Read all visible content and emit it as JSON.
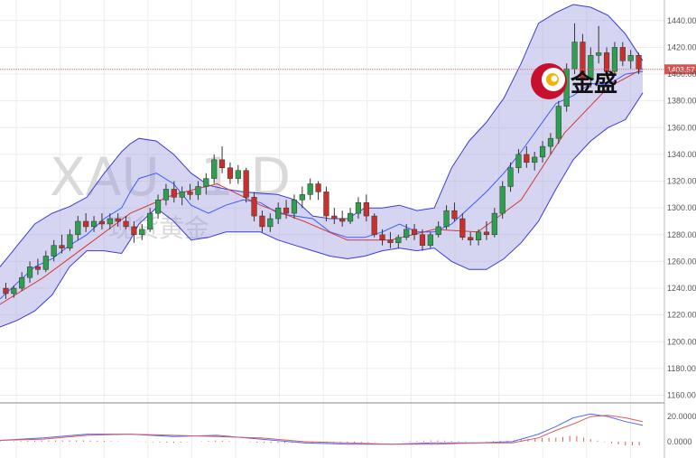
{
  "chart_data": {
    "type": "candlestick",
    "watermark": {
      "symbol": "XAU",
      "timeframe": "1 D",
      "subtitle": "现货黄金"
    },
    "brand": {
      "name": "金盛"
    },
    "price_axis": {
      "ticks": [
        "1160.00",
        "1180.00",
        "1200.00",
        "1220.00",
        "1240.00",
        "1260.00",
        "1280.00",
        "1300.00",
        "1320.00",
        "1340.00",
        "1360.00",
        "1380.00",
        "1400.00",
        "1420.00",
        "1440.00"
      ],
      "tick_values": [
        1160,
        1180,
        1200,
        1220,
        1240,
        1260,
        1280,
        1300,
        1320,
        1340,
        1360,
        1380,
        1400,
        1420,
        1440
      ],
      "ylim": [
        1157,
        1450
      ]
    },
    "current_price": {
      "label": "1403.57",
      "value": 1403.57
    },
    "indicator_axis": {
      "ticks": [
        "20.0000",
        "0.0000"
      ],
      "tick_values": [
        20,
        0
      ],
      "ylim": [
        -8,
        28
      ]
    },
    "bollinger": {
      "x": [
        0,
        4,
        8,
        12,
        16,
        20,
        24,
        28,
        30,
        32,
        36,
        40,
        44,
        48,
        52,
        56,
        60,
        64,
        68,
        72,
        76,
        80,
        84,
        88,
        92,
        96,
        100,
        104,
        108,
        112,
        116,
        120,
        124,
        128,
        132,
        136,
        140,
        144,
        148
      ],
      "upper": [
        1256,
        1272,
        1288,
        1296,
        1301,
        1308,
        1326,
        1342,
        1348,
        1352,
        1350,
        1340,
        1326,
        1317,
        1314,
        1312,
        1311,
        1310,
        1306,
        1294,
        1292,
        1292,
        1300,
        1300,
        1302,
        1298,
        1300,
        1330,
        1350,
        1364,
        1382,
        1408,
        1438,
        1446,
        1452,
        1450,
        1444,
        1430,
        1410
      ],
      "middle": [
        1232,
        1244,
        1256,
        1262,
        1272,
        1280,
        1292,
        1300,
        1312,
        1322,
        1326,
        1318,
        1302,
        1296,
        1302,
        1306,
        1304,
        1296,
        1294,
        1292,
        1282,
        1278,
        1278,
        1282,
        1288,
        1282,
        1282,
        1288,
        1300,
        1312,
        1326,
        1342,
        1360,
        1378,
        1384,
        1393,
        1392,
        1400,
        1402
      ],
      "lower": [
        1211,
        1216,
        1223,
        1235,
        1256,
        1268,
        1268,
        1266,
        1276,
        1288,
        1300,
        1290,
        1276,
        1278,
        1282,
        1282,
        1282,
        1276,
        1272,
        1268,
        1264,
        1262,
        1264,
        1268,
        1270,
        1268,
        1270,
        1260,
        1254,
        1254,
        1262,
        1274,
        1290,
        1314,
        1336,
        1350,
        1360,
        1366,
        1386
      ]
    },
    "moving_average": {
      "name": "",
      "x": [
        0,
        10,
        20,
        30,
        40,
        50,
        60,
        70,
        80,
        90,
        100,
        110,
        120,
        130,
        140,
        148
      ],
      "values": [
        1228,
        1248,
        1272,
        1296,
        1310,
        1318,
        1302,
        1290,
        1276,
        1276,
        1284,
        1282,
        1306,
        1356,
        1390,
        1404
      ]
    },
    "candles": [
      {
        "o": 1240,
        "h": 1244,
        "l": 1232,
        "c": 1236
      },
      {
        "o": 1236,
        "h": 1242,
        "l": 1233,
        "c": 1240
      },
      {
        "o": 1240,
        "h": 1252,
        "l": 1238,
        "c": 1248
      },
      {
        "o": 1248,
        "h": 1260,
        "l": 1244,
        "c": 1256
      },
      {
        "o": 1256,
        "h": 1262,
        "l": 1250,
        "c": 1254
      },
      {
        "o": 1254,
        "h": 1268,
        "l": 1252,
        "c": 1264
      },
      {
        "o": 1264,
        "h": 1276,
        "l": 1260,
        "c": 1272
      },
      {
        "o": 1272,
        "h": 1280,
        "l": 1266,
        "c": 1270
      },
      {
        "o": 1270,
        "h": 1284,
        "l": 1268,
        "c": 1280
      },
      {
        "o": 1280,
        "h": 1294,
        "l": 1276,
        "c": 1290
      },
      {
        "o": 1290,
        "h": 1296,
        "l": 1282,
        "c": 1286
      },
      {
        "o": 1286,
        "h": 1294,
        "l": 1282,
        "c": 1290
      },
      {
        "o": 1290,
        "h": 1296,
        "l": 1284,
        "c": 1288
      },
      {
        "o": 1288,
        "h": 1296,
        "l": 1284,
        "c": 1292
      },
      {
        "o": 1292,
        "h": 1296,
        "l": 1286,
        "c": 1290
      },
      {
        "o": 1290,
        "h": 1294,
        "l": 1284,
        "c": 1286
      },
      {
        "o": 1286,
        "h": 1290,
        "l": 1274,
        "c": 1280
      },
      {
        "o": 1280,
        "h": 1288,
        "l": 1276,
        "c": 1284
      },
      {
        "o": 1284,
        "h": 1300,
        "l": 1282,
        "c": 1296
      },
      {
        "o": 1296,
        "h": 1310,
        "l": 1292,
        "c": 1306
      },
      {
        "o": 1306,
        "h": 1318,
        "l": 1302,
        "c": 1314
      },
      {
        "o": 1314,
        "h": 1320,
        "l": 1304,
        "c": 1308
      },
      {
        "o": 1308,
        "h": 1316,
        "l": 1302,
        "c": 1312
      },
      {
        "o": 1312,
        "h": 1318,
        "l": 1306,
        "c": 1310
      },
      {
        "o": 1310,
        "h": 1320,
        "l": 1306,
        "c": 1316
      },
      {
        "o": 1316,
        "h": 1326,
        "l": 1310,
        "c": 1322
      },
      {
        "o": 1322,
        "h": 1340,
        "l": 1318,
        "c": 1336
      },
      {
        "o": 1336,
        "h": 1346,
        "l": 1326,
        "c": 1330
      },
      {
        "o": 1330,
        "h": 1334,
        "l": 1318,
        "c": 1322
      },
      {
        "o": 1322,
        "h": 1332,
        "l": 1318,
        "c": 1328
      },
      {
        "o": 1328,
        "h": 1330,
        "l": 1304,
        "c": 1308
      },
      {
        "o": 1308,
        "h": 1312,
        "l": 1290,
        "c": 1294
      },
      {
        "o": 1294,
        "h": 1298,
        "l": 1282,
        "c": 1286
      },
      {
        "o": 1286,
        "h": 1296,
        "l": 1282,
        "c": 1292
      },
      {
        "o": 1292,
        "h": 1304,
        "l": 1288,
        "c": 1300
      },
      {
        "o": 1300,
        "h": 1306,
        "l": 1292,
        "c": 1296
      },
      {
        "o": 1296,
        "h": 1310,
        "l": 1292,
        "c": 1306
      },
      {
        "o": 1306,
        "h": 1316,
        "l": 1300,
        "c": 1310
      },
      {
        "o": 1310,
        "h": 1322,
        "l": 1306,
        "c": 1318
      },
      {
        "o": 1318,
        "h": 1320,
        "l": 1306,
        "c": 1312
      },
      {
        "o": 1312,
        "h": 1316,
        "l": 1290,
        "c": 1294
      },
      {
        "o": 1294,
        "h": 1300,
        "l": 1288,
        "c": 1292
      },
      {
        "o": 1292,
        "h": 1298,
        "l": 1286,
        "c": 1290
      },
      {
        "o": 1290,
        "h": 1300,
        "l": 1288,
        "c": 1296
      },
      {
        "o": 1296,
        "h": 1308,
        "l": 1292,
        "c": 1304
      },
      {
        "o": 1304,
        "h": 1310,
        "l": 1290,
        "c": 1294
      },
      {
        "o": 1294,
        "h": 1296,
        "l": 1278,
        "c": 1280
      },
      {
        "o": 1280,
        "h": 1284,
        "l": 1272,
        "c": 1276
      },
      {
        "o": 1276,
        "h": 1282,
        "l": 1270,
        "c": 1274
      },
      {
        "o": 1274,
        "h": 1280,
        "l": 1270,
        "c": 1278
      },
      {
        "o": 1278,
        "h": 1288,
        "l": 1276,
        "c": 1284
      },
      {
        "o": 1284,
        "h": 1288,
        "l": 1276,
        "c": 1280
      },
      {
        "o": 1280,
        "h": 1284,
        "l": 1268,
        "c": 1272
      },
      {
        "o": 1272,
        "h": 1282,
        "l": 1270,
        "c": 1280
      },
      {
        "o": 1280,
        "h": 1290,
        "l": 1278,
        "c": 1286
      },
      {
        "o": 1286,
        "h": 1302,
        "l": 1284,
        "c": 1298
      },
      {
        "o": 1298,
        "h": 1304,
        "l": 1290,
        "c": 1292
      },
      {
        "o": 1292,
        "h": 1296,
        "l": 1276,
        "c": 1278
      },
      {
        "o": 1278,
        "h": 1282,
        "l": 1272,
        "c": 1276
      },
      {
        "o": 1276,
        "h": 1284,
        "l": 1272,
        "c": 1282
      },
      {
        "o": 1282,
        "h": 1290,
        "l": 1276,
        "c": 1280
      },
      {
        "o": 1280,
        "h": 1300,
        "l": 1278,
        "c": 1296
      },
      {
        "o": 1296,
        "h": 1320,
        "l": 1292,
        "c": 1316
      },
      {
        "o": 1316,
        "h": 1334,
        "l": 1312,
        "c": 1330
      },
      {
        "o": 1330,
        "h": 1344,
        "l": 1326,
        "c": 1340
      },
      {
        "o": 1340,
        "h": 1346,
        "l": 1330,
        "c": 1334
      },
      {
        "o": 1334,
        "h": 1342,
        "l": 1328,
        "c": 1338
      },
      {
        "o": 1338,
        "h": 1350,
        "l": 1334,
        "c": 1346
      },
      {
        "o": 1346,
        "h": 1356,
        "l": 1340,
        "c": 1352
      },
      {
        "o": 1352,
        "h": 1380,
        "l": 1348,
        "c": 1376
      },
      {
        "o": 1376,
        "h": 1408,
        "l": 1372,
        "c": 1404
      },
      {
        "o": 1404,
        "h": 1438,
        "l": 1400,
        "c": 1424
      },
      {
        "o": 1424,
        "h": 1430,
        "l": 1392,
        "c": 1396
      },
      {
        "o": 1396,
        "h": 1420,
        "l": 1390,
        "c": 1414
      },
      {
        "o": 1414,
        "h": 1436,
        "l": 1408,
        "c": 1416
      },
      {
        "o": 1416,
        "h": 1420,
        "l": 1398,
        "c": 1402
      },
      {
        "o": 1402,
        "h": 1424,
        "l": 1400,
        "c": 1420
      },
      {
        "o": 1420,
        "h": 1424,
        "l": 1406,
        "c": 1410
      },
      {
        "o": 1410,
        "h": 1418,
        "l": 1404,
        "c": 1414
      },
      {
        "o": 1414,
        "h": 1416,
        "l": 1400,
        "c": 1404
      }
    ],
    "macd": {
      "x": [
        0,
        10,
        20,
        30,
        40,
        50,
        60,
        70,
        80,
        90,
        100,
        110,
        118,
        124,
        128,
        132,
        136,
        140,
        144,
        148
      ],
      "line": [
        1,
        3,
        6,
        6,
        4,
        5,
        2,
        -1,
        -2,
        -2,
        -1,
        -1,
        0,
        6,
        12,
        19,
        22,
        20,
        16,
        13
      ],
      "signal": [
        1,
        2,
        5,
        6,
        5,
        4,
        3,
        0,
        -1,
        -2,
        -2,
        -1,
        -1,
        3,
        9,
        14,
        20,
        21,
        19,
        16
      ],
      "histogram": [
        0,
        1,
        1,
        0,
        -1,
        1,
        -1,
        -1,
        -1,
        0,
        1,
        0,
        1,
        3,
        3,
        5,
        2,
        -1,
        -3,
        -3
      ]
    }
  }
}
